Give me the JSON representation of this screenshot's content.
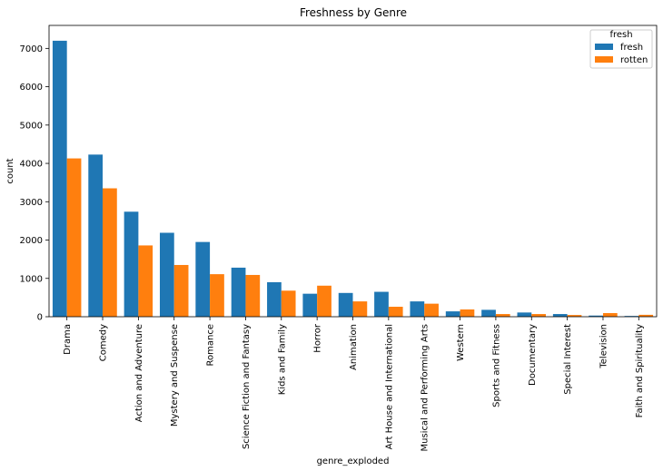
{
  "chart_data": {
    "type": "bar",
    "title": "Freshness by Genre",
    "xlabel": "genre_exploded",
    "ylabel": "count",
    "ylim": [
      0,
      7600
    ],
    "yticks": [
      0,
      1000,
      2000,
      3000,
      4000,
      5000,
      6000,
      7000
    ],
    "categories": [
      "Drama",
      "Comedy",
      "Action and Adventure",
      "Mystery and Suspense",
      "Romance",
      "Science Fiction and Fantasy",
      "Kids and Family",
      "Horror",
      "Animation",
      "Art House and International",
      "Musical and Performing Arts",
      "Western",
      "Sports and Fitness",
      "Documentary",
      "Special Interest",
      "Television",
      "Faith and Spirituality"
    ],
    "series": [
      {
        "name": "fresh",
        "color": "#1f77b4",
        "values": [
          7200,
          4230,
          2740,
          2190,
          1950,
          1280,
          900,
          600,
          620,
          650,
          400,
          140,
          180,
          110,
          70,
          30,
          20
        ]
      },
      {
        "name": "rotten",
        "color": "#ff7f0e",
        "values": [
          4130,
          3350,
          1860,
          1350,
          1110,
          1090,
          680,
          810,
          400,
          260,
          340,
          190,
          70,
          70,
          45,
          95,
          50
        ]
      }
    ],
    "legend": {
      "title": "fresh",
      "placement": "top-right"
    },
    "grid": false
  }
}
